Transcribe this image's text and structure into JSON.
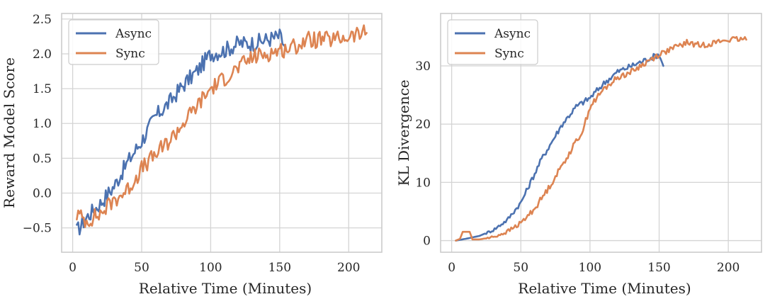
{
  "chart_data": [
    {
      "type": "line",
      "xlabel": "Relative Time (Minutes)",
      "ylabel": "Reward Model Score",
      "xlim": [
        -8,
        224
      ],
      "ylim": [
        -0.85,
        2.58
      ],
      "xticks": [
        0,
        50,
        100,
        150,
        200
      ],
      "yticks": [
        -0.5,
        0.0,
        0.5,
        1.0,
        1.5,
        2.0,
        2.5
      ],
      "ytick_labels": [
        "−0.5",
        "0.0",
        "0.5",
        "1.0",
        "1.5",
        "2.0",
        "2.5"
      ],
      "grid": true,
      "legend": "top-left",
      "series": [
        {
          "name": "Async",
          "color": "#4c72b0",
          "x": [
            3,
            10,
            20,
            30,
            40,
            50,
            60,
            70,
            80,
            90,
            100,
            110,
            120,
            130,
            140,
            150,
            154
          ],
          "y": [
            -0.55,
            -0.35,
            -0.15,
            0.1,
            0.45,
            0.75,
            1.1,
            1.3,
            1.55,
            1.75,
            2.0,
            2.05,
            2.15,
            2.15,
            2.2,
            2.25,
            2.1
          ]
        },
        {
          "name": "Sync",
          "color": "#dd8452",
          "x": [
            3,
            10,
            20,
            30,
            40,
            50,
            60,
            70,
            80,
            90,
            100,
            110,
            120,
            130,
            140,
            150,
            160,
            170,
            180,
            190,
            200,
            213
          ],
          "y": [
            -0.3,
            -0.4,
            -0.3,
            -0.1,
            0.05,
            0.35,
            0.55,
            0.75,
            1.0,
            1.25,
            1.5,
            1.65,
            1.8,
            1.95,
            2.0,
            2.05,
            2.1,
            2.2,
            2.2,
            2.2,
            2.25,
            2.3
          ]
        }
      ]
    },
    {
      "type": "line",
      "xlabel": "Relative Time (Minutes)",
      "ylabel": "KL Divergence",
      "xlim": [
        -8,
        224
      ],
      "ylim": [
        -2,
        39
      ],
      "xticks": [
        0,
        50,
        100,
        150,
        200
      ],
      "yticks": [
        0,
        10,
        20,
        30
      ],
      "ytick_labels": [
        "0",
        "10",
        "20",
        "30"
      ],
      "grid": true,
      "legend": "top-left",
      "series": [
        {
          "name": "Async",
          "color": "#4c72b0",
          "x": [
            3,
            10,
            20,
            30,
            40,
            50,
            55,
            60,
            65,
            70,
            75,
            80,
            90,
            100,
            110,
            120,
            130,
            140,
            150,
            153
          ],
          "y": [
            0,
            0.3,
            0.8,
            1.8,
            3.5,
            6.5,
            9,
            11.5,
            14,
            16,
            18,
            20,
            23,
            24.5,
            27,
            29,
            30,
            31,
            32,
            30
          ]
        },
        {
          "name": "Sync",
          "color": "#dd8452",
          "x": [
            3,
            6,
            8,
            13,
            15,
            20,
            30,
            40,
            50,
            60,
            70,
            75,
            80,
            85,
            90,
            95,
            100,
            110,
            120,
            130,
            140,
            150,
            160,
            170,
            180,
            190,
            200,
            213
          ],
          "y": [
            0,
            0.3,
            1.5,
            1.5,
            0.2,
            0.2,
            0.6,
            1.5,
            3,
            5.5,
            9,
            11,
            13,
            15,
            17,
            19,
            23,
            26,
            28,
            29,
            30.5,
            32,
            33,
            34,
            33.5,
            34,
            34.5,
            34.5
          ]
        }
      ]
    }
  ]
}
